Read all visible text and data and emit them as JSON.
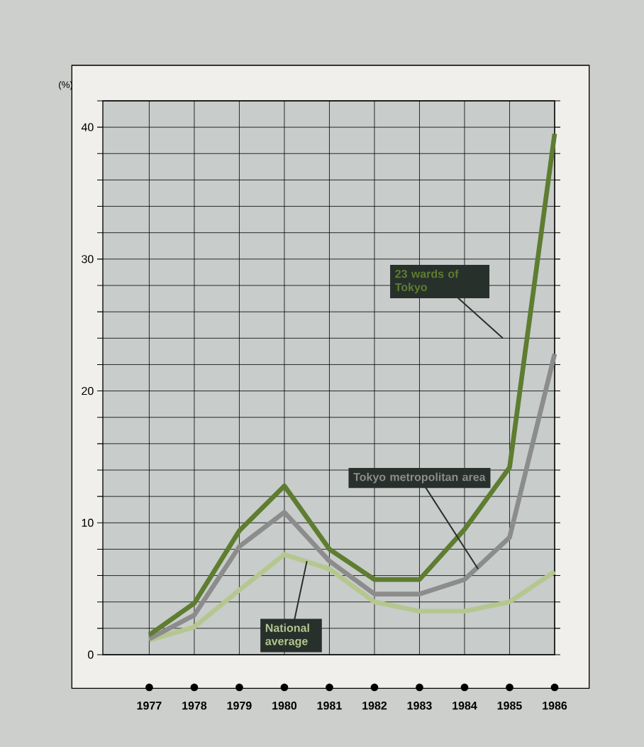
{
  "chart_data": {
    "type": "line",
    "ylabel": "(%)",
    "categories": [
      "1977",
      "1978",
      "1979",
      "1980",
      "1981",
      "1982",
      "1983",
      "1984",
      "1985",
      "1986"
    ],
    "series": [
      {
        "name": "23 wards of Tokyo",
        "color": "#5e7d30",
        "values": [
          1.5,
          3.9,
          9.4,
          12.8,
          8.0,
          5.7,
          5.7,
          9.5,
          14.2,
          39.5
        ]
      },
      {
        "name": "Tokyo metropolitan area",
        "color": "#8c8c8c",
        "values": [
          1.2,
          3.0,
          8.2,
          10.8,
          7.1,
          4.6,
          4.6,
          5.7,
          8.9,
          22.8
        ]
      },
      {
        "name": "National average",
        "color": "#b5c78f",
        "values": [
          1.1,
          2.1,
          4.9,
          7.6,
          6.5,
          4.0,
          3.3,
          3.3,
          4.0,
          6.3
        ]
      }
    ],
    "ylim": [
      0,
      42
    ],
    "yticks": [
      0,
      {
        "value": 2,
        "label": null
      },
      {
        "value": 4,
        "label": null
      },
      {
        "value": 6,
        "label": null
      },
      {
        "value": 8,
        "label": null
      },
      10,
      {
        "value": 12,
        "label": null
      },
      {
        "value": 14,
        "label": null
      },
      {
        "value": 16,
        "label": null
      },
      {
        "value": 18,
        "label": null
      },
      20,
      {
        "value": 22,
        "label": null
      },
      {
        "value": 24,
        "label": null
      },
      {
        "value": 26,
        "label": null
      },
      {
        "value": 28,
        "label": null
      },
      30,
      {
        "value": 32,
        "label": null
      },
      {
        "value": 34,
        "label": null
      },
      {
        "value": 36,
        "label": null
      },
      {
        "value": 38,
        "label": null
      },
      40,
      {
        "value": 42,
        "label": null
      }
    ],
    "grid": true,
    "legend": false,
    "marker": "none",
    "line_style": "solid"
  }
}
